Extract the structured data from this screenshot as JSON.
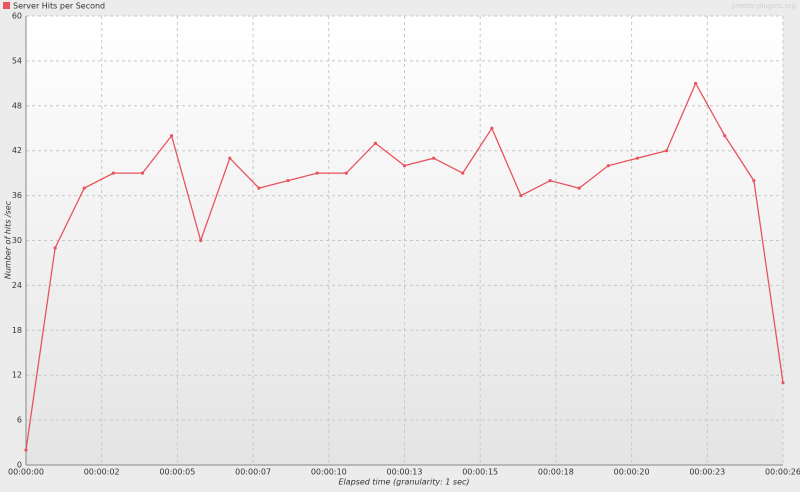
{
  "chart_data": {
    "type": "line",
    "watermark": "jmeter-plugins.org",
    "xlabel": "Elapsed time (granularity: 1 sec)",
    "ylabel": "Number of hits /sec",
    "x": [
      0,
      1,
      2,
      3,
      4,
      5,
      6,
      7,
      8,
      9,
      10,
      11,
      12,
      13,
      14,
      15,
      16,
      17,
      18,
      19,
      20,
      21,
      22,
      23,
      24,
      25,
      26
    ],
    "series": [
      {
        "name": "Server Hits per Second",
        "color": "#e8545e",
        "values": [
          2,
          29,
          37,
          39,
          39,
          44,
          30,
          41,
          37,
          38,
          39,
          39,
          43,
          40,
          41,
          39,
          45,
          36,
          38,
          37,
          40,
          41,
          42,
          51,
          44,
          38,
          11
        ]
      }
    ],
    "xlim": [
      0,
      26
    ],
    "xticks": [
      {
        "value": 0,
        "label": "00:00:00"
      },
      {
        "value": 2.6,
        "label": "00:00:02"
      },
      {
        "value": 5.2,
        "label": "00:00:05"
      },
      {
        "value": 7.8,
        "label": "00:00:07"
      },
      {
        "value": 10.4,
        "label": "00:00:10"
      },
      {
        "value": 13,
        "label": "00:00:13"
      },
      {
        "value": 15.6,
        "label": "00:00:15"
      },
      {
        "value": 18.2,
        "label": "00:00:18"
      },
      {
        "value": 20.8,
        "label": "00:00:20"
      },
      {
        "value": 23.4,
        "label": "00:00:23"
      },
      {
        "value": 26,
        "label": "00:00:26"
      }
    ],
    "ylim": [
      0,
      60
    ],
    "yticks": [
      0,
      6,
      12,
      18,
      24,
      30,
      36,
      42,
      48,
      54,
      60
    ],
    "grid": true,
    "legend": "top-left"
  }
}
